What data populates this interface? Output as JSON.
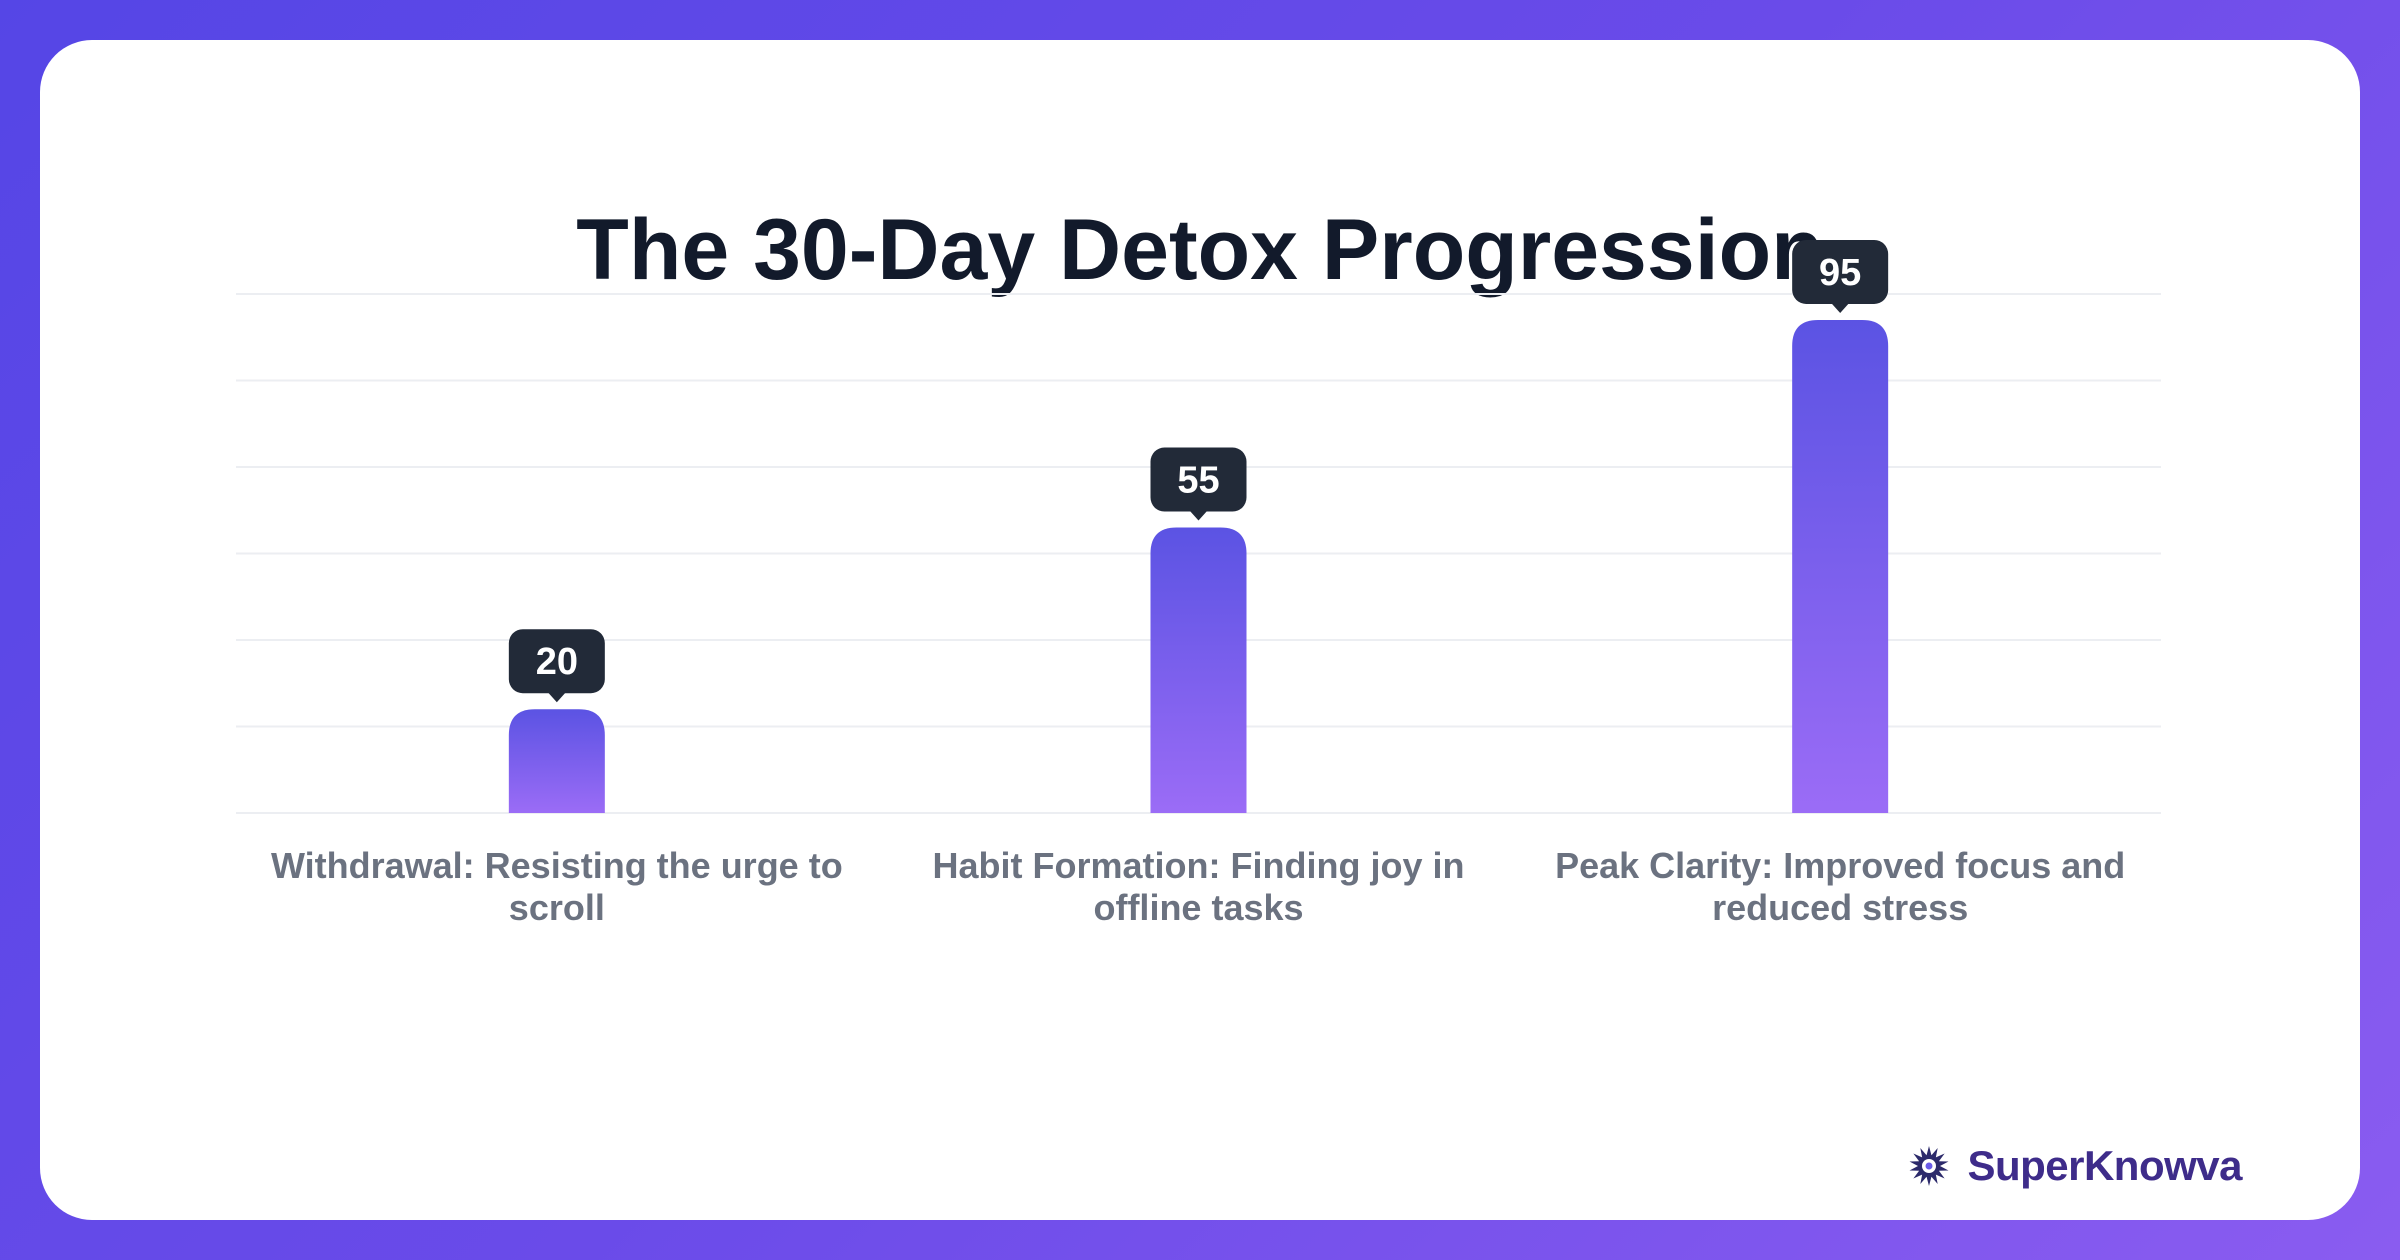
{
  "chart_data": {
    "type": "bar",
    "title": "The 30-Day Detox Progression",
    "categories": [
      [
        "Withdrawal: Resisting the urge to",
        "scroll"
      ],
      [
        "Habit Formation: Finding joy in",
        "offline tasks"
      ],
      [
        "Peak Clarity: Improved focus and",
        "reduced stress"
      ]
    ],
    "values": [
      20,
      55,
      95
    ],
    "xlabel": "",
    "ylabel": "",
    "ylim": [
      0,
      100
    ],
    "grid": true,
    "legend": "none",
    "colors": {
      "bar_top": "#5b53e3",
      "bar_bottom": "#9b6cf6",
      "tooltip": "#222a38"
    }
  },
  "brand": {
    "name": "SuperKnowva",
    "icon": "starburst-logo-icon"
  }
}
